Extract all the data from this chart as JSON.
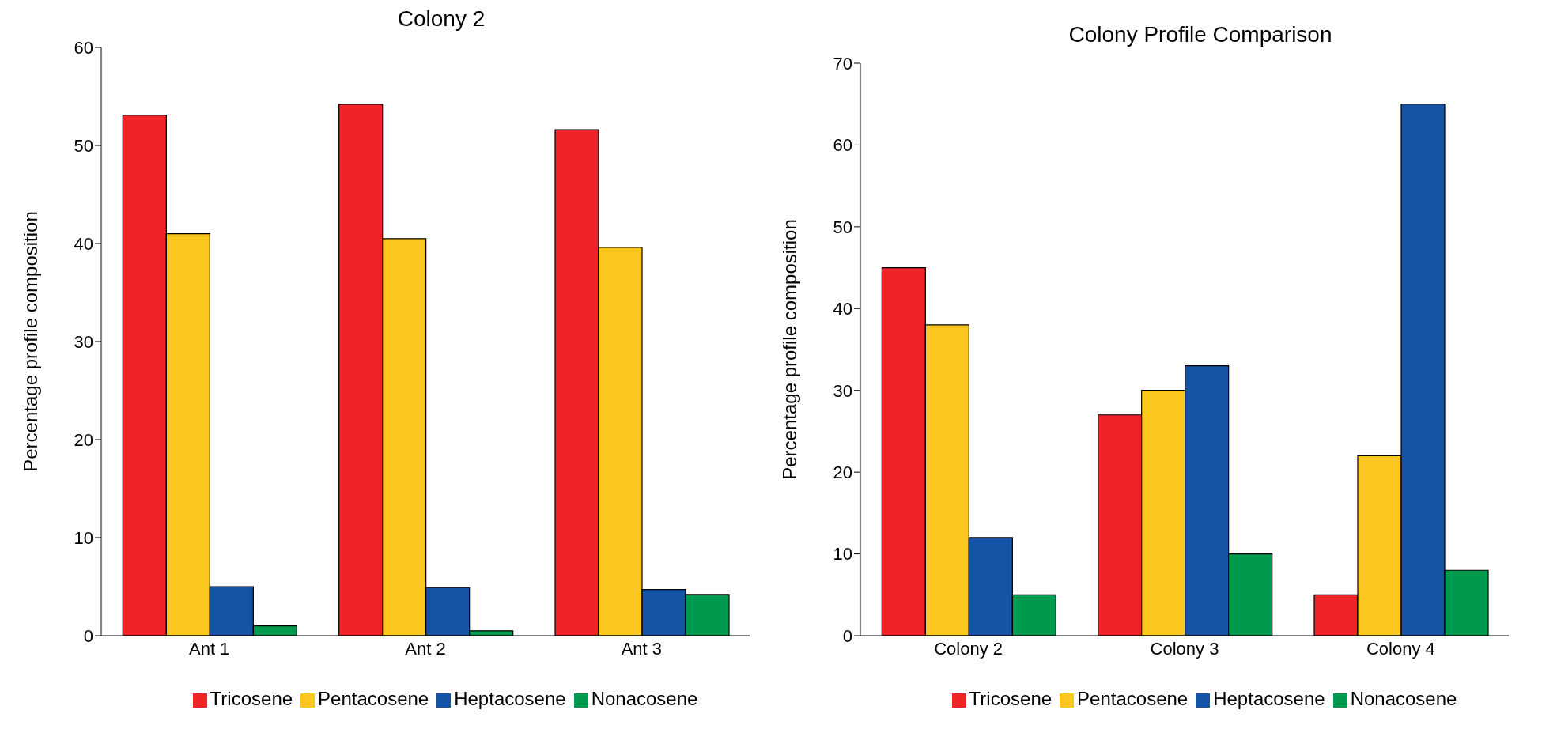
{
  "chart_data": [
    {
      "type": "bar",
      "title": "Colony 2",
      "ylabel": "Percentage profile composition",
      "categories": [
        "Ant 1",
        "Ant 2",
        "Ant 3"
      ],
      "series": [
        {
          "name": "Tricosene",
          "color": "#ee2428",
          "values": [
            53.1,
            54.2,
            51.6
          ]
        },
        {
          "name": "Pentacosene",
          "color": "#fbc71f",
          "values": [
            41,
            40.5,
            39.6
          ]
        },
        {
          "name": "Heptacosene",
          "color": "#1553a6",
          "values": [
            5,
            4.9,
            4.7
          ]
        },
        {
          "name": "Nonacosene",
          "color": "#009a4e",
          "values": [
            1,
            0.5,
            4.2
          ]
        }
      ],
      "ylim": [
        0,
        60
      ],
      "yticks": [
        0,
        10,
        20,
        30,
        40,
        50,
        60
      ],
      "grid": false,
      "legend": "bottom"
    },
    {
      "type": "bar",
      "title": "Colony Profile Comparison",
      "ylabel": "Percentage profile composition",
      "categories": [
        "Colony 2",
        "Colony 3",
        "Colony 4"
      ],
      "series": [
        {
          "name": "Tricosene",
          "color": "#ee2428",
          "values": [
            45,
            27,
            5
          ]
        },
        {
          "name": "Pentacosene",
          "color": "#fbc71f",
          "values": [
            38,
            30,
            22
          ]
        },
        {
          "name": "Heptacosene",
          "color": "#1553a6",
          "values": [
            12,
            33,
            65
          ]
        },
        {
          "name": "Nonacosene",
          "color": "#009a4e",
          "values": [
            5,
            10,
            8
          ]
        }
      ],
      "ylim": [
        0,
        70
      ],
      "yticks": [
        0,
        10,
        20,
        30,
        40,
        50,
        60,
        70
      ],
      "grid": false,
      "legend": "bottom"
    }
  ]
}
